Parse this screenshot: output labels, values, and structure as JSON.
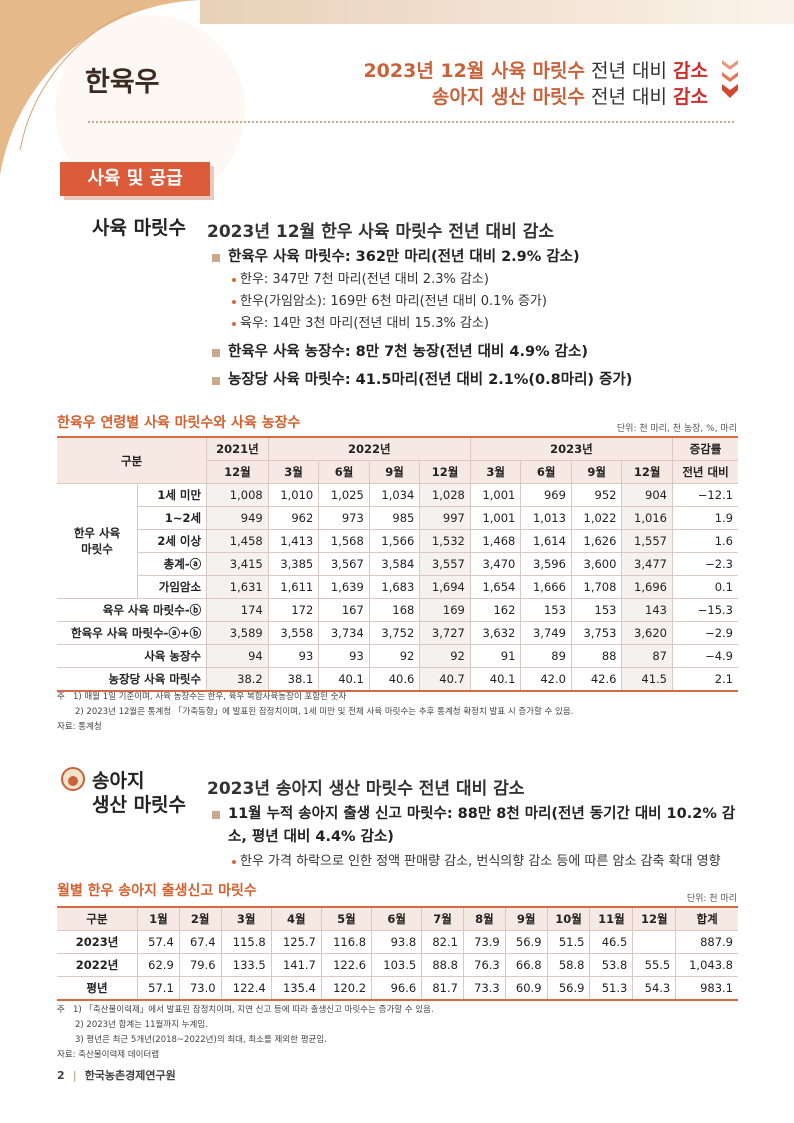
{
  "header": {
    "title": "한육우",
    "headline": [
      [
        "2023년 12월 사육 마릿수",
        " 전년 대비 ",
        "감소"
      ],
      [
        "송아지 생산 마릿수",
        " 전년 대비 ",
        "감소"
      ]
    ]
  },
  "section_tag": "사육 및 공급",
  "block1": {
    "label": "사육 마릿수",
    "heading": "2023년 12월 한우 사육 마릿수 전년 대비 감소",
    "bullets": [
      {
        "text": "한육우 사육 마릿수: 362만 마리(전년 대비 2.9% 감소)",
        "subs": [
          "한우: 347만 7천 마리(전년 대비 2.3% 감소)",
          "한우(가임암소): 169만 6천 마리(전년 대비 0.1% 증가)",
          "육우: 14만 3천 마리(전년 대비 15.3% 감소)"
        ]
      },
      {
        "text": "한육우 사육 농장수: 8만 7천 농장(전년 대비 4.9% 감소)",
        "subs": []
      },
      {
        "text": "농장당 사육 마릿수: 41.5마리(전년 대비 2.1%(0.8마리) 증가)",
        "subs": []
      }
    ]
  },
  "table1": {
    "title": "한육우 연령별 사육 마릿수와 사육 농장수",
    "unit": "단위: 천 마리, 천 농장, %, 마리",
    "header_top": [
      "구분",
      "2021년",
      "2022년",
      "2023년",
      "증감률"
    ],
    "header_sub": [
      "12월",
      "3월",
      "6월",
      "9월",
      "12월",
      "3월",
      "6월",
      "9월",
      "12월",
      "전년 대비"
    ],
    "groups": [
      {
        "label": "한우 사육 마릿수",
        "rows": [
          {
            "label": "1세 미만",
            "cells": [
              "1,008",
              "1,010",
              "1,025",
              "1,034",
              "1,028",
              "1,001",
              "969",
              "952",
              "904",
              "−12.1"
            ]
          },
          {
            "label": "1~2세",
            "cells": [
              "949",
              "962",
              "973",
              "985",
              "997",
              "1,001",
              "1,013",
              "1,022",
              "1,016",
              "1.9"
            ]
          },
          {
            "label": "2세 이상",
            "cells": [
              "1,458",
              "1,413",
              "1,568",
              "1,566",
              "1,532",
              "1,468",
              "1,614",
              "1,626",
              "1,557",
              "1.6"
            ]
          },
          {
            "label": "총계-ⓐ",
            "cells": [
              "3,415",
              "3,385",
              "3,567",
              "3,584",
              "3,557",
              "3,470",
              "3,596",
              "3,600",
              "3,477",
              "−2.3"
            ]
          },
          {
            "label": "가임암소",
            "cells": [
              "1,631",
              "1,611",
              "1,639",
              "1,683",
              "1,694",
              "1,654",
              "1,666",
              "1,708",
              "1,696",
              "0.1"
            ]
          }
        ]
      }
    ],
    "rows": [
      {
        "label": "육우 사육 마릿수-ⓑ",
        "cells": [
          "174",
          "172",
          "167",
          "168",
          "169",
          "162",
          "153",
          "153",
          "143",
          "−15.3"
        ]
      },
      {
        "label": "한육우 사육 마릿수-ⓐ+ⓑ",
        "cells": [
          "3,589",
          "3,558",
          "3,734",
          "3,752",
          "3,727",
          "3,632",
          "3,749",
          "3,753",
          "3,620",
          "−2.9"
        ]
      },
      {
        "label": "사육 농장수",
        "cells": [
          "94",
          "93",
          "93",
          "92",
          "92",
          "91",
          "89",
          "88",
          "87",
          "−4.9"
        ]
      },
      {
        "label": "농장당 사육 마릿수",
        "cells": [
          "38.2",
          "38.1",
          "40.1",
          "40.6",
          "40.7",
          "40.1",
          "42.0",
          "42.6",
          "41.5",
          "2.1"
        ]
      }
    ],
    "note_label": "주",
    "notes": [
      "1) 매월 1일 기준이며, 사육 농장수는 한우, 육우 복합사육농장이 포함된 숫자",
      "2) 2023년 12월은 통계청 「가축동향」에 발표된 잠정치이며, 1세 미만 및 전체 사육 마릿수는 추후 통계청 확정치 발표 시 증가할 수 있음."
    ],
    "source": "자료: 통계청"
  },
  "block2": {
    "label": [
      "송아지",
      "생산 마릿수"
    ],
    "heading": "2023년 송아지 생산 마릿수 전년 대비 감소",
    "bullets": [
      {
        "text": "11월 누적 송아지 출생 신고 마릿수: 88만 8천 마리(전년 동기간 대비 10.2% 감소, 평년 대비 4.4% 감소)",
        "subs": [
          "한우 가격 하락으로 인한 정액 판매량 감소, 번식의향 감소 등에 따른 암소 감축 확대 영향"
        ]
      }
    ]
  },
  "table2": {
    "title": "월별 한우 송아지 출생신고 마릿수",
    "unit": "단위: 천 마리",
    "header": [
      "구분",
      "1월",
      "2월",
      "3월",
      "4월",
      "5월",
      "6월",
      "7월",
      "8월",
      "9월",
      "10월",
      "11월",
      "12월",
      "합계"
    ],
    "rows": [
      {
        "label": "2023년",
        "cells": [
          "57.4",
          "67.4",
          "115.8",
          "125.7",
          "116.8",
          "93.8",
          "82.1",
          "73.9",
          "56.9",
          "51.5",
          "46.5",
          null,
          "887.9"
        ]
      },
      {
        "label": "2022년",
        "cells": [
          "62.9",
          "79.6",
          "133.5",
          "141.7",
          "122.6",
          "103.5",
          "88.8",
          "76.3",
          "66.8",
          "58.8",
          "53.8",
          "55.5",
          "1,043.8"
        ]
      },
      {
        "label": "평년",
        "cells": [
          "57.1",
          "73.0",
          "122.4",
          "135.4",
          "120.2",
          "96.6",
          "81.7",
          "73.3",
          "60.9",
          "56.9",
          "51.3",
          "54.3",
          "983.1"
        ]
      }
    ],
    "note_label": "주",
    "notes": [
      "1) 「축산물이력제」에서 발표된 잠정치이며, 지연 신고 등에 따라 출생신고 마릿수는 증가할 수 있음.",
      "2) 2023년 합계는 11월까지 누계임.",
      "3) 평년은 최근 5개년(2018~2022년)의 최대, 최소를 제외한 평균임."
    ],
    "source": "자료: 축산물이력제 데이터랩"
  },
  "footer": {
    "page": "2",
    "org": "한국농촌경제연구원"
  }
}
